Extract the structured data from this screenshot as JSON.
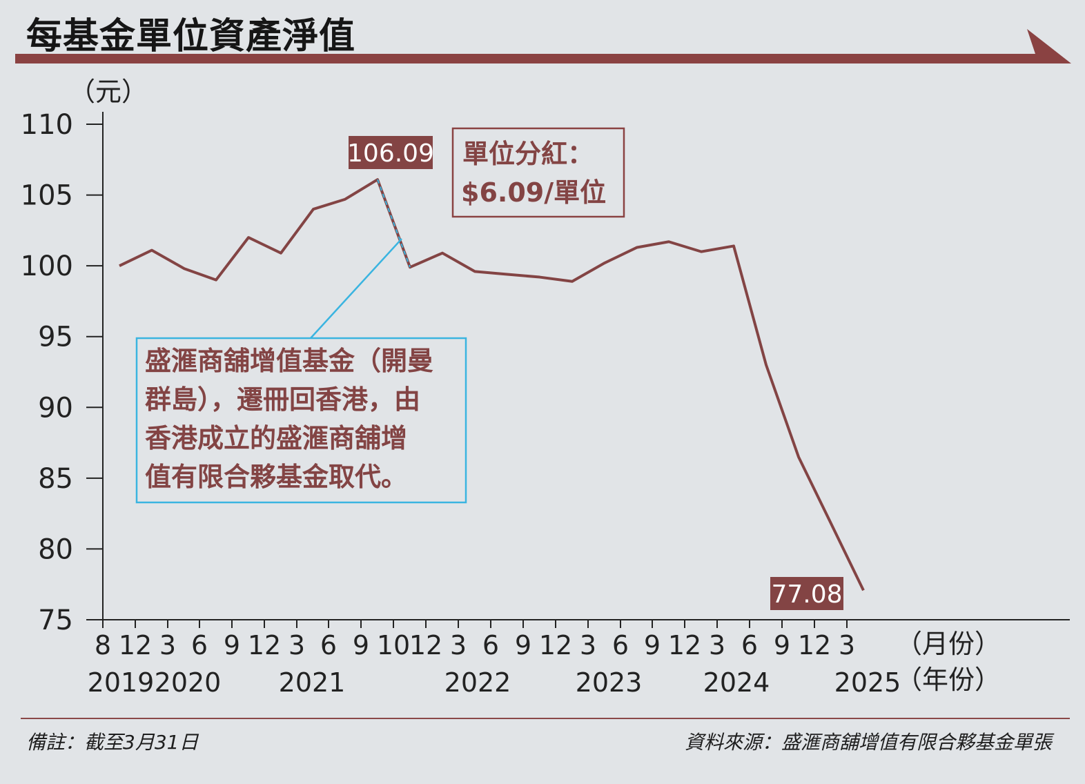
{
  "title": "每基金單位資產淨值",
  "colors": {
    "accent": "#8a4242",
    "line": "#834444",
    "callout": "#3ab4e0",
    "axis": "#222222"
  },
  "note": "備註：截至3月31日",
  "source": "資料來源：盛滙商舖增值有限合夥基金單張",
  "annotations": {
    "peak_label": "106.09",
    "end_label": "77.08",
    "dividend_line1": "單位分紅：",
    "dividend_line2": "$6.09/單位",
    "callout_lines": [
      "盛滙商舖增值基金（開曼",
      "群島），遷冊回香港，由",
      "香港成立的盛滙商舖增",
      "值有限合夥基金取代。"
    ]
  },
  "chart_data": {
    "type": "line",
    "title": "每基金單位資產淨值",
    "ylabel": "（元）",
    "ylim": [
      75,
      110
    ],
    "yticks": [
      110,
      105,
      100,
      95,
      90,
      85,
      80,
      75
    ],
    "x_month_labels": [
      "8",
      "12",
      "3",
      "6",
      "9",
      "12",
      "3",
      "6",
      "9",
      "10",
      "12",
      "3",
      "6",
      "9",
      "12",
      "3",
      "6",
      "9",
      "12",
      "3",
      "6",
      "9",
      "12",
      "3"
    ],
    "x_month_unit": "（月份）",
    "x_year_labels": [
      "2019",
      "2020",
      "2021",
      "2022",
      "2023",
      "2024",
      "2025"
    ],
    "x_year_unit": "（年份）",
    "series": [
      {
        "x": [
          "2019-08",
          "2019-12",
          "2020-03",
          "2020-06",
          "2020-09",
          "2020-12",
          "2021-03",
          "2021-06",
          "2021-09",
          "2021-10",
          "2021-12",
          "2022-03",
          "2022-06",
          "2022-09",
          "2022-12",
          "2023-03",
          "2023-06",
          "2023-09",
          "2023-12",
          "2024-03",
          "2024-06",
          "2024-09",
          "2024-12",
          "2025-03"
        ],
        "values": [
          100.0,
          101.1,
          99.8,
          99.0,
          102.0,
          100.9,
          104.0,
          104.7,
          106.09,
          99.9,
          100.9,
          99.6,
          99.4,
          99.2,
          98.9,
          100.2,
          101.3,
          101.7,
          101.0,
          101.4,
          93.0,
          86.5,
          81.8,
          77.08
        ]
      }
    ]
  }
}
